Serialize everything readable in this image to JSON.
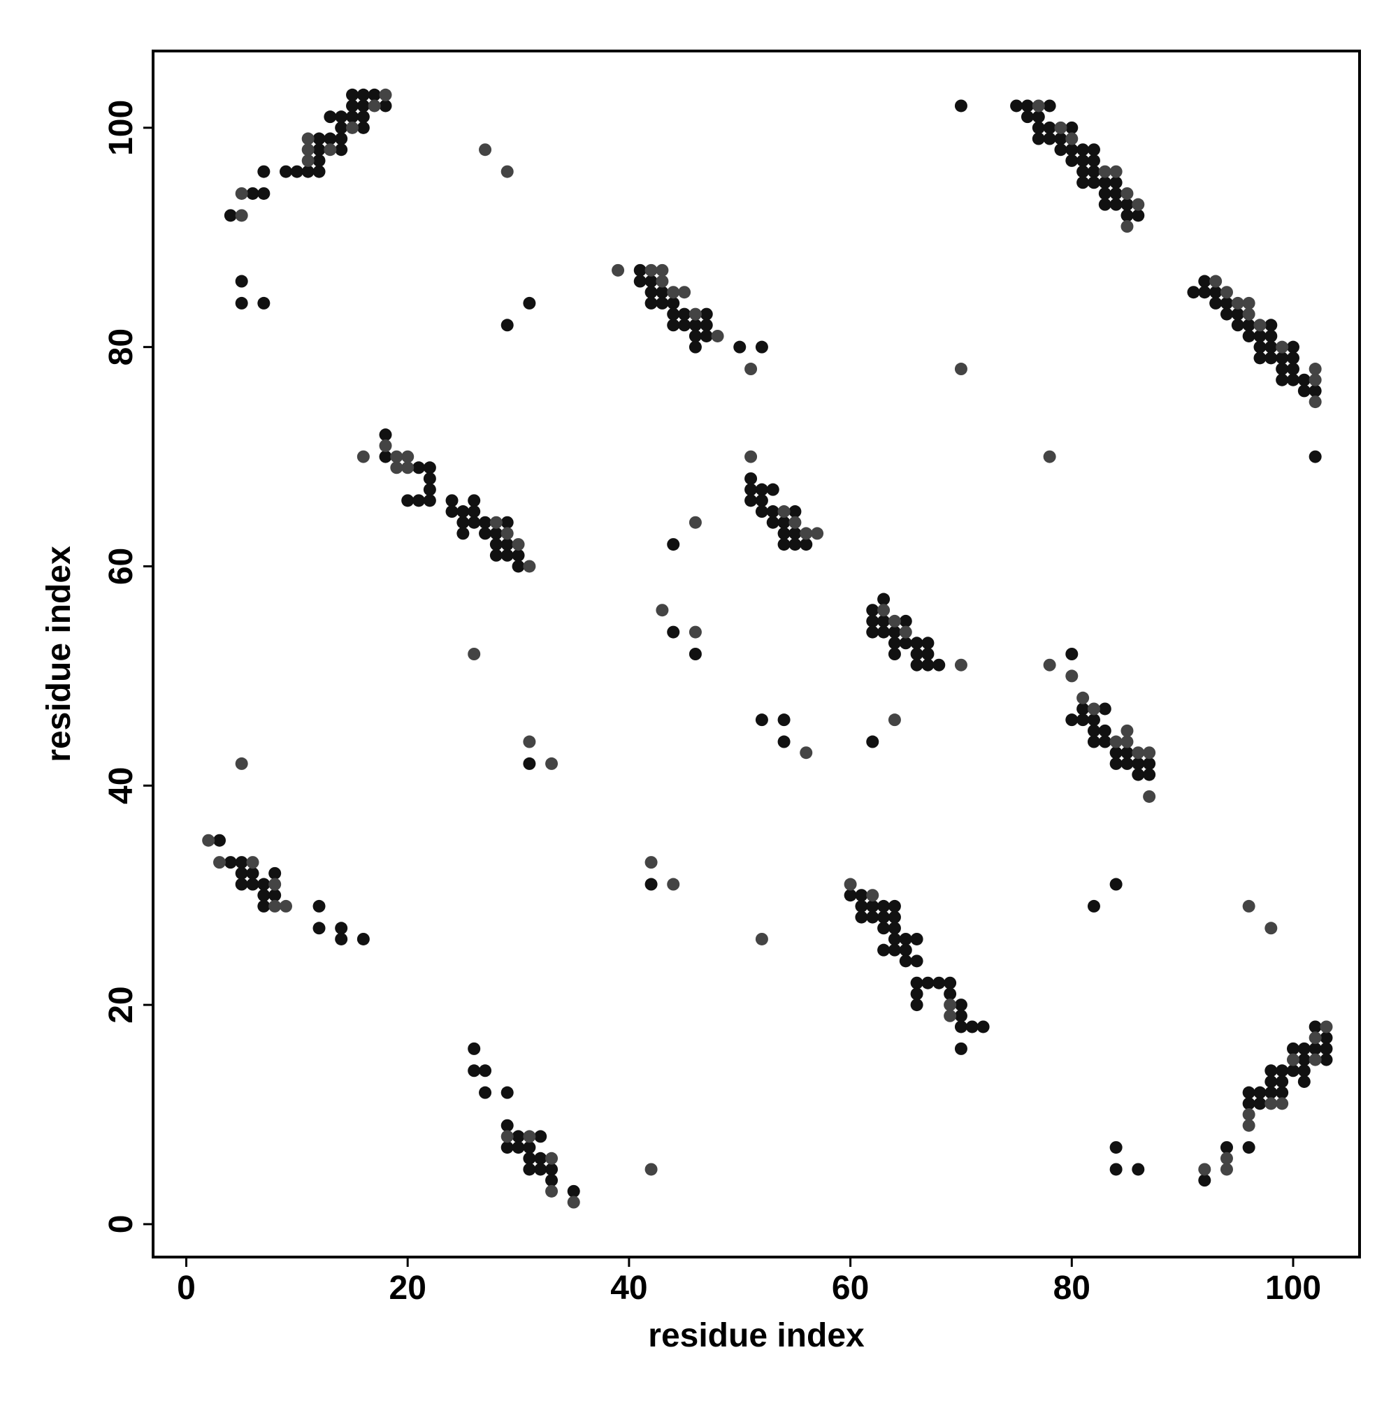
{
  "chart_data": {
    "type": "scatter",
    "xlabel": "residue index",
    "ylabel": "residue index",
    "xlim": [
      -3,
      106
    ],
    "ylim": [
      -3,
      107
    ],
    "xticks": [
      0,
      20,
      40,
      60,
      80,
      100
    ],
    "yticks": [
      0,
      20,
      40,
      60,
      80,
      100
    ],
    "grid": false,
    "series": [
      {
        "color": "#111111",
        "x": [
          4,
          6,
          7,
          7,
          9,
          10,
          11,
          12,
          12,
          12,
          12,
          13,
          14,
          14,
          14,
          13,
          14,
          15,
          16,
          16,
          16,
          15,
          15,
          16,
          17,
          18,
          5,
          5,
          7,
          29,
          31,
          41,
          41,
          42,
          42,
          42,
          43,
          43,
          44,
          44,
          44,
          45,
          45,
          46,
          46,
          46,
          47,
          47,
          47,
          50,
          52,
          70,
          75,
          76,
          76,
          77,
          77,
          78,
          78,
          78,
          77,
          79,
          79,
          80,
          80,
          80,
          81,
          81,
          81,
          82,
          82,
          82,
          81,
          82,
          83,
          83,
          84,
          84,
          83,
          84,
          85,
          85,
          86,
          91,
          92,
          92,
          93,
          93,
          94,
          94,
          95,
          95,
          96,
          96,
          97,
          97,
          98,
          98,
          98,
          97,
          98,
          99,
          99,
          100,
          100,
          100,
          99,
          100,
          101,
          101,
          102,
          102,
          18,
          18,
          20,
          21,
          21,
          22,
          22,
          22,
          22,
          24,
          24,
          25,
          25,
          25,
          26,
          26,
          26,
          27,
          27,
          28,
          28,
          28,
          29,
          29,
          29,
          30,
          30,
          51,
          51,
          51,
          52,
          52,
          52,
          53,
          53,
          53,
          54,
          54,
          55,
          55,
          55,
          56,
          54,
          44,
          44,
          46,
          62,
          62,
          62,
          63,
          63,
          63,
          64,
          64,
          64,
          65,
          65,
          66,
          66,
          66,
          67,
          67,
          67,
          68,
          80,
          80,
          81,
          81,
          82,
          82,
          82,
          83,
          83,
          83,
          84,
          84,
          85,
          85,
          86,
          86,
          87,
          87,
          52,
          54,
          54,
          62,
          31,
          3,
          4,
          5,
          5,
          5,
          6,
          6,
          7,
          7,
          7,
          8,
          8,
          12,
          12,
          14,
          14,
          16,
          42,
          60,
          61,
          61,
          61,
          62,
          62,
          63,
          63,
          63,
          64,
          64,
          64,
          64,
          63,
          64,
          65,
          65,
          65,
          66,
          66,
          66,
          66,
          66,
          67,
          68,
          69,
          69,
          70,
          70,
          70,
          71,
          72,
          70,
          82,
          84,
          26,
          26,
          27,
          27,
          29,
          29,
          29,
          30,
          30,
          31,
          31,
          31,
          32,
          32,
          32,
          33,
          33,
          35,
          84,
          84,
          86,
          92,
          94,
          96,
          96,
          96,
          97,
          97,
          98,
          98,
          98,
          99,
          99,
          99,
          100,
          100,
          101,
          101,
          101,
          101,
          102,
          102,
          103,
          103,
          103
        ],
        "values": [
          92,
          94,
          94,
          96,
          96,
          96,
          96,
          96,
          97,
          98,
          99,
          99,
          98,
          99,
          100,
          101,
          101,
          101,
          100,
          101,
          102,
          102,
          103,
          103,
          103,
          102,
          86,
          84,
          84,
          82,
          84,
          87,
          86,
          86,
          85,
          84,
          85,
          84,
          84,
          83,
          82,
          83,
          82,
          82,
          81,
          80,
          83,
          82,
          81,
          80,
          80,
          102,
          102,
          102,
          101,
          101,
          100,
          102,
          100,
          99,
          99,
          99,
          98,
          100,
          98,
          97,
          98,
          97,
          96,
          98,
          97,
          96,
          95,
          95,
          95,
          94,
          95,
          94,
          93,
          93,
          93,
          92,
          92,
          85,
          86,
          85,
          85,
          84,
          84,
          83,
          83,
          82,
          82,
          81,
          81,
          80,
          82,
          81,
          80,
          79,
          79,
          79,
          78,
          80,
          79,
          78,
          77,
          77,
          77,
          76,
          76,
          70,
          72,
          70,
          66,
          69,
          66,
          69,
          68,
          67,
          66,
          66,
          65,
          65,
          64,
          63,
          66,
          65,
          64,
          64,
          63,
          63,
          62,
          61,
          64,
          62,
          61,
          61,
          60,
          68,
          67,
          66,
          67,
          66,
          65,
          67,
          65,
          64,
          64,
          63,
          65,
          63,
          62,
          62,
          62,
          62,
          54,
          52,
          56,
          55,
          54,
          57,
          55,
          54,
          54,
          53,
          52,
          55,
          53,
          53,
          52,
          51,
          53,
          52,
          51,
          51,
          52,
          46,
          47,
          46,
          46,
          45,
          44,
          47,
          45,
          44,
          43,
          42,
          43,
          42,
          42,
          41,
          42,
          41,
          46,
          46,
          44,
          44,
          42,
          35,
          33,
          33,
          32,
          31,
          32,
          31,
          31,
          30,
          29,
          32,
          30,
          29,
          27,
          27,
          26,
          26,
          31,
          30,
          30,
          29,
          28,
          29,
          28,
          29,
          28,
          27,
          29,
          28,
          27,
          26,
          25,
          25,
          26,
          25,
          24,
          26,
          24,
          22,
          21,
          20,
          22,
          22,
          22,
          21,
          20,
          19,
          18,
          18,
          18,
          16,
          29,
          31,
          16,
          14,
          14,
          12,
          12,
          9,
          7,
          8,
          7,
          7,
          6,
          5,
          8,
          6,
          5,
          5,
          4,
          3,
          7,
          5,
          5,
          4,
          7,
          12,
          11,
          7,
          12,
          11,
          14,
          13,
          12,
          14,
          13,
          12,
          16,
          14,
          16,
          15,
          14,
          13,
          18,
          16,
          17,
          16,
          15
        ]
      },
      {
        "color": "#444444",
        "x": [
          5,
          5,
          11,
          11,
          11,
          13,
          15,
          17,
          18,
          27,
          29,
          39,
          42,
          43,
          43,
          44,
          45,
          46,
          48,
          51,
          77,
          79,
          80,
          83,
          84,
          85,
          86,
          85,
          93,
          94,
          95,
          96,
          96,
          97,
          99,
          102,
          102,
          102,
          70,
          78,
          16,
          18,
          19,
          19,
          20,
          20,
          28,
          29,
          30,
          31,
          51,
          54,
          55,
          56,
          57,
          46,
          43,
          46,
          26,
          63,
          64,
          65,
          70,
          78,
          80,
          81,
          82,
          84,
          85,
          85,
          86,
          87,
          87,
          56,
          64,
          5,
          31,
          33,
          2,
          3,
          6,
          8,
          8,
          9,
          42,
          44,
          60,
          62,
          69,
          69,
          52,
          96,
          98,
          29,
          31,
          33,
          33,
          35,
          42,
          92,
          94,
          94,
          96,
          96,
          98,
          99,
          100,
          102,
          102,
          103
        ],
        "values": [
          92,
          94,
          97,
          98,
          99,
          98,
          100,
          102,
          103,
          98,
          96,
          87,
          87,
          87,
          86,
          85,
          85,
          83,
          81,
          78,
          102,
          100,
          99,
          96,
          96,
          94,
          93,
          91,
          86,
          85,
          84,
          84,
          83,
          82,
          80,
          78,
          77,
          75,
          78,
          70,
          70,
          71,
          69,
          70,
          70,
          69,
          64,
          63,
          62,
          60,
          70,
          65,
          64,
          63,
          63,
          64,
          56,
          54,
          52,
          56,
          55,
          54,
          51,
          51,
          50,
          48,
          47,
          44,
          45,
          44,
          43,
          43,
          39,
          43,
          46,
          42,
          44,
          42,
          35,
          33,
          33,
          31,
          29,
          29,
          33,
          31,
          31,
          30,
          20,
          19,
          26,
          29,
          27,
          8,
          8,
          6,
          3,
          2,
          5,
          5,
          6,
          5,
          10,
          9,
          11,
          11,
          15,
          17,
          15,
          18
        ]
      }
    ]
  }
}
